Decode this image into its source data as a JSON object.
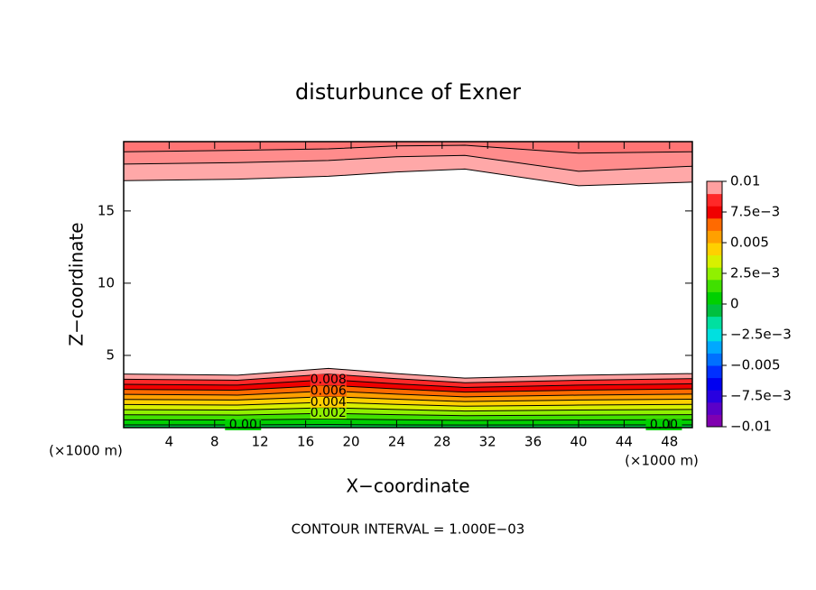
{
  "chart_data": {
    "type": "contour",
    "title": "disturbunce of Exner",
    "xlabel": "X−coordinate",
    "ylabel": "Z−coordinate",
    "axis_unit": "(×1000 m)",
    "footer": "CONTOUR INTERVAL = 1.000E−03",
    "xlim": [
      0,
      50
    ],
    "xticks": [
      4,
      8,
      12,
      16,
      20,
      24,
      28,
      32,
      36,
      40,
      44,
      48
    ],
    "ylim": [
      0,
      19.8
    ],
    "yticks": [
      5,
      10,
      15
    ],
    "x": [
      0,
      10,
      18,
      24,
      30,
      40,
      50
    ],
    "contours": [
      {
        "level": 0,
        "label": "0.00",
        "z": [
          0.19,
          0.19,
          0.21,
          0.19,
          0.18,
          0.19,
          0.19
        ]
      },
      {
        "level": 0.001,
        "z": [
          0.54,
          0.53,
          0.6,
          0.55,
          0.5,
          0.53,
          0.55
        ]
      },
      {
        "level": 0.002,
        "z": [
          0.89,
          0.87,
          0.99,
          0.9,
          0.83,
          0.87,
          0.9
        ]
      },
      {
        "level": 0.003,
        "z": [
          1.24,
          1.22,
          1.38,
          1.26,
          1.15,
          1.22,
          1.26
        ]
      },
      {
        "level": 0.004,
        "z": [
          1.6,
          1.56,
          1.76,
          1.61,
          1.48,
          1.56,
          1.61
        ]
      },
      {
        "level": 0.005,
        "z": [
          1.95,
          1.91,
          2.15,
          1.97,
          1.8,
          1.91,
          1.97
        ]
      },
      {
        "level": 0.006,
        "z": [
          2.3,
          2.25,
          2.54,
          2.32,
          2.13,
          2.25,
          2.32
        ]
      },
      {
        "level": 0.007,
        "z": [
          2.65,
          2.59,
          2.93,
          2.68,
          2.46,
          2.59,
          2.68
        ]
      },
      {
        "level": 0.008,
        "z": [
          3.0,
          2.94,
          3.32,
          3.03,
          2.78,
          2.94,
          3.03
        ]
      },
      {
        "level": 0.009,
        "z": [
          3.35,
          3.28,
          3.71,
          3.39,
          3.11,
          3.28,
          3.39
        ]
      },
      {
        "level": 0.01,
        "z": [
          3.71,
          3.63,
          4.1,
          3.74,
          3.43,
          3.63,
          3.74
        ]
      }
    ],
    "upper_contours": [
      {
        "level": 0.01,
        "z": [
          17.1,
          17.2,
          17.4,
          17.7,
          17.9,
          16.75,
          17.0
        ]
      },
      {
        "level": 0.011,
        "z": [
          18.25,
          18.35,
          18.5,
          18.75,
          18.85,
          17.75,
          18.1
        ]
      },
      {
        "level": 0.012,
        "z": [
          19.1,
          19.2,
          19.3,
          19.5,
          19.55,
          19.0,
          19.1
        ]
      }
    ],
    "upper_colors": [
      "#ffa8a8",
      "#ff8c8c",
      "#ff7474"
    ],
    "colorbar": {
      "lim": [
        -0.01,
        0.01
      ],
      "colors": [
        "#8000b0",
        "#5a00c8",
        "#2800e0",
        "#0000f0",
        "#0030ff",
        "#0070ff",
        "#00a8ff",
        "#00e0e0",
        "#00e0a0",
        "#00c040",
        "#00d000",
        "#40e000",
        "#90f000",
        "#d8f000",
        "#ffd000",
        "#ffa000",
        "#ff6a00",
        "#f00000",
        "#ff2828",
        "#ffa0a0"
      ],
      "ticks": [
        0.01,
        {
          "value": 0.0075,
          "label": "7.5e−3"
        },
        0.005,
        {
          "value": 0.0025,
          "label": "2.5e−3"
        },
        0,
        {
          "value": -0.0025,
          "label": "−2.5e−3"
        },
        {
          "value": -0.005,
          "label": "−0.005"
        },
        {
          "value": -0.0075,
          "label": "−7.5e−3"
        },
        {
          "value": -0.01,
          "label": "−0.01"
        }
      ]
    }
  }
}
